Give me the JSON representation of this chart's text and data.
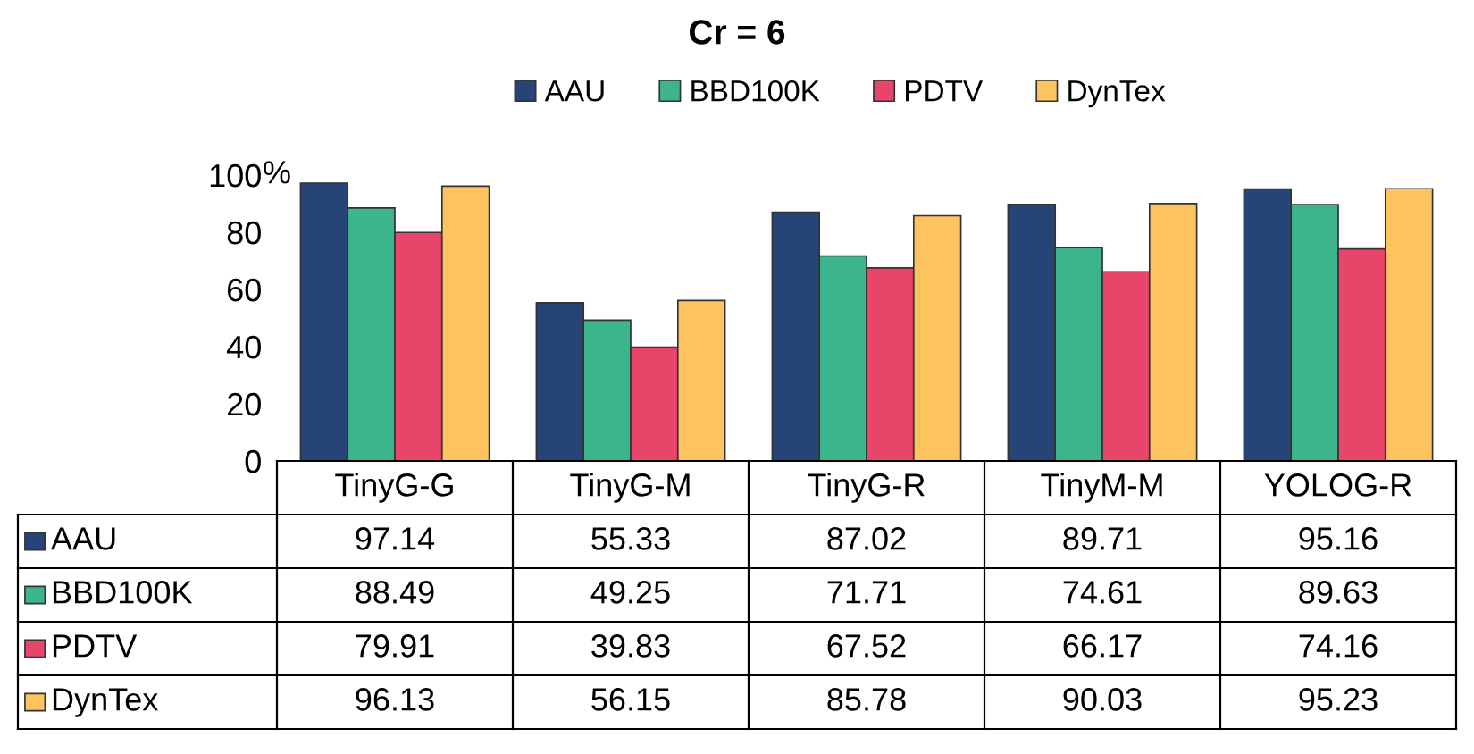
{
  "chart_data": {
    "type": "bar",
    "title": "Cr = 6",
    "ylabel": "%",
    "categories": [
      "TinyG-G",
      "TinyG-M",
      "TinyG-R",
      "TinyM-M",
      "YOLOG-R"
    ],
    "series": [
      {
        "name": "AAU",
        "color": "#264478",
        "values": [
          97.14,
          55.33,
          87.02,
          89.71,
          95.16
        ]
      },
      {
        "name": "BBD100K",
        "color": "#3cb48c",
        "values": [
          88.49,
          49.25,
          71.71,
          74.61,
          89.63
        ]
      },
      {
        "name": "PDTV",
        "color": "#e8456a",
        "values": [
          79.91,
          39.83,
          67.52,
          66.17,
          74.16
        ]
      },
      {
        "name": "DynTex",
        "color": "#fcc35e",
        "values": [
          96.13,
          56.15,
          85.78,
          90.03,
          95.23
        ]
      }
    ],
    "ylim": [
      0,
      100
    ],
    "yticks": [
      0,
      20,
      40,
      60,
      80,
      100
    ],
    "grid": false,
    "legend": "top",
    "data_labels": true
  }
}
